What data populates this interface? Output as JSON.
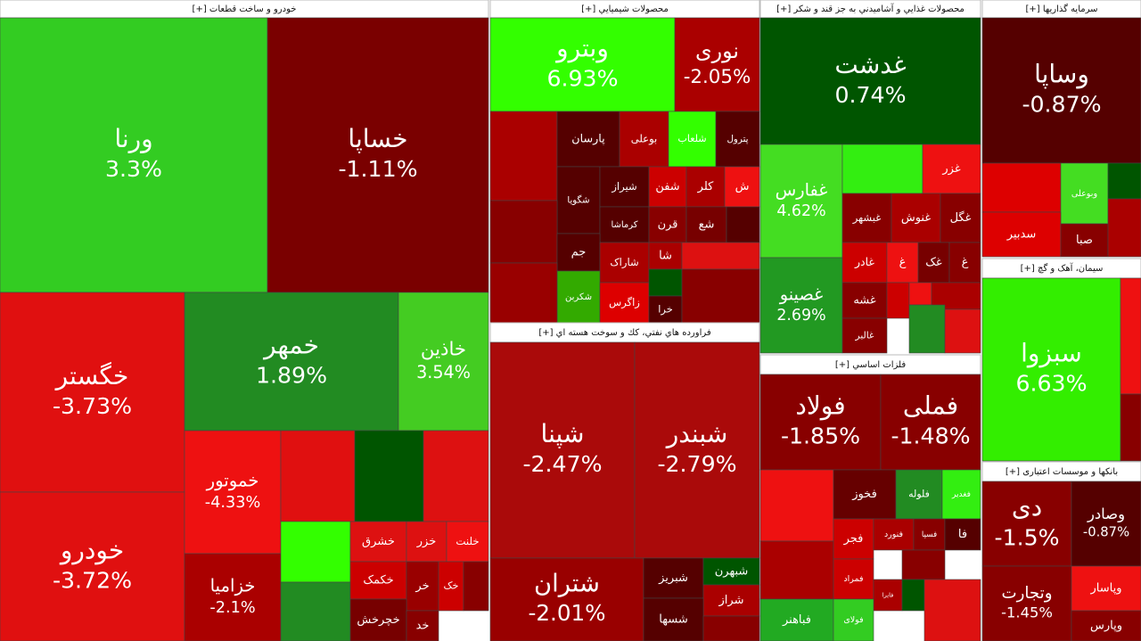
{
  "sectors": [
    {
      "title": "خودرو و ساخت قطعات [+]",
      "tiles": [
        {
          "label": "ورنا",
          "change": "3.3%",
          "color": "#33cc22"
        },
        {
          "label": "خساپا",
          "change": "-1.11%",
          "color": "#7a0000"
        },
        {
          "label": "خگستر",
          "change": "-3.73%",
          "color": "#e01010"
        },
        {
          "label": "خودرو",
          "change": "-3.72%",
          "color": "#e01010"
        },
        {
          "label": "خمهر",
          "change": "1.89%",
          "color": "#228b22"
        },
        {
          "label": "خاذین",
          "change": "3.54%",
          "color": "#44cc22"
        },
        {
          "label": "خموتور",
          "change": "-4.33%",
          "color": "#ee1111"
        },
        {
          "label": "خزامیا",
          "change": "-2.1%",
          "color": "#aa0000"
        },
        {
          "color": "#e01010"
        },
        {
          "color": "#005500"
        },
        {
          "color": "#dd1111"
        },
        {
          "color": "#33ff00"
        },
        {
          "color": "#228b22"
        },
        {
          "label": "خشرق",
          "color": "#dd1111"
        },
        {
          "label": "خزر",
          "color": "#dd1111"
        },
        {
          "label": "خلنت",
          "color": "#ee1111"
        },
        {
          "label": "خکمک",
          "color": "#cc0000"
        },
        {
          "label": "خر",
          "color": "#990000"
        },
        {
          "label": "خک",
          "color": "#cc0000"
        },
        {
          "color": "#880000"
        },
        {
          "label": "خچرخش",
          "color": "#770000"
        },
        {
          "label": "خد",
          "color": "#880000"
        }
      ]
    },
    {
      "title": "محصولات شيميايي [+]",
      "tiles": [
        {
          "label": "وبترو",
          "change": "6.93%",
          "color": "#33ff00"
        },
        {
          "label": "نوری",
          "change": "-2.05%",
          "color": "#aa0000"
        },
        {
          "color": "#aa0000"
        },
        {
          "label": "پارسان",
          "color": "#550000"
        },
        {
          "label": "بوعلی",
          "color": "#aa0000"
        },
        {
          "label": "شلعاب",
          "color": "#33ff00"
        },
        {
          "label": "پترول",
          "color": "#550000"
        },
        {
          "label": "شگویا",
          "color": "#550000"
        },
        {
          "label": "شیراز",
          "color": "#550000"
        },
        {
          "label": "شفن",
          "color": "#cc0000"
        },
        {
          "label": "کلر",
          "color": "#aa0000"
        },
        {
          "label": "ش",
          "color": "#ee1111"
        },
        {
          "color": "#880000"
        },
        {
          "label": "کرماشا",
          "color": "#550000"
        },
        {
          "label": "قرن",
          "color": "#880000"
        },
        {
          "label": "شع",
          "color": "#770000"
        },
        {
          "color": "#550000"
        },
        {
          "label": "جم",
          "color": "#550000"
        },
        {
          "label": "شاراک",
          "color": "#aa0000"
        },
        {
          "label": "شا",
          "color": "#aa0000"
        },
        {
          "color": "#dd1111"
        },
        {
          "label": "شکربن",
          "color": "#33aa00"
        },
        {
          "label": "زاگرس",
          "color": "#dd0000"
        },
        {
          "color": "#005500"
        },
        {
          "label": "خرا",
          "color": "#550000"
        },
        {
          "color": "#880000"
        },
        {
          "color": "#990000"
        }
      ]
    },
    {
      "title": "فراورده هاي نفتي، كك و سوخت هسته اي [+]",
      "tiles": [
        {
          "label": "شپنا",
          "change": "-2.47%",
          "color": "#aa0a0a"
        },
        {
          "label": "شبندر",
          "change": "-2.79%",
          "color": "#aa0a0a"
        },
        {
          "label": "شتران",
          "change": "-2.01%",
          "color": "#990000"
        },
        {
          "label": "شبریز",
          "color": "#550000"
        },
        {
          "label": "شبهرن",
          "color": "#005500"
        },
        {
          "label": "شراز",
          "color": "#aa0000"
        },
        {
          "label": "شسها",
          "color": "#550000"
        },
        {
          "color": "#880000"
        }
      ]
    },
    {
      "title": "محصولات غذايي و آشاميدني به جز قند و شكر [+]",
      "tiles": [
        {
          "label": "غدشت",
          "change": "0.74%",
          "color": "#005500"
        },
        {
          "label": "غفارس",
          "change": "4.62%",
          "color": "#44dd22"
        },
        {
          "label": "غصینو",
          "change": "2.69%",
          "color": "#229922"
        },
        {
          "color": "#33ee11"
        },
        {
          "label": "غزر",
          "color": "#ee1111"
        },
        {
          "label": "غبشهر",
          "color": "#880000"
        },
        {
          "label": "غنوش",
          "color": "#aa0000"
        },
        {
          "label": "غگل",
          "color": "#880000"
        },
        {
          "label": "غادر",
          "color": "#cc0000"
        },
        {
          "label": "غ",
          "color": "#ee1111"
        },
        {
          "label": "غک",
          "color": "#770000"
        },
        {
          "label": "غ",
          "color": "#880000"
        },
        {
          "label": "غشه",
          "color": "#880000"
        },
        {
          "label": "غالبر",
          "color": "#880000"
        },
        {
          "color": "#cc0000"
        },
        {
          "color": "#ee1111"
        },
        {
          "color": "#aa0000"
        },
        {
          "color": "#228b22"
        },
        {
          "color": "#dd1111"
        }
      ]
    },
    {
      "title": "فلزات اساسي [+]",
      "tiles": [
        {
          "label": "فولاد",
          "change": "-1.85%",
          "color": "#880000"
        },
        {
          "label": "فملی",
          "change": "-1.48%",
          "color": "#880000"
        },
        {
          "color": "#ee1111"
        },
        {
          "label": "فخوز",
          "color": "#660000"
        },
        {
          "label": "فلوله",
          "color": "#228b22"
        },
        {
          "label": "فغدیر",
          "color": "#33ee11"
        },
        {
          "color": "#aa0000"
        },
        {
          "label": "فباهنر",
          "color": "#22aa22"
        },
        {
          "label": "فجر",
          "color": "#cc0000"
        },
        {
          "label": "فنورد",
          "color": "#aa0000"
        },
        {
          "label": "فسپا",
          "color": "#880000"
        },
        {
          "label": "فا",
          "color": "#550000"
        },
        {
          "label": "فمراد",
          "color": "#cc0000"
        },
        {
          "label": "فایرا",
          "color": "#aa0000"
        },
        {
          "label": "فولای",
          "color": "#33cc22"
        },
        {
          "color": "#880000"
        },
        {
          "color": "#005500"
        },
        {
          "color": "#dd1111"
        }
      ]
    },
    {
      "title": "سرمایه گذاریها [+]",
      "tiles": [
        {
          "label": "وساپا",
          "change": "-0.87%",
          "color": "#550000"
        },
        {
          "color": "#dd0000"
        },
        {
          "label": "وبوعلی",
          "color": "#44dd22"
        },
        {
          "color": "#005500"
        },
        {
          "label": "سدبیر",
          "color": "#dd0000"
        },
        {
          "label": "صبا",
          "color": "#880000"
        },
        {
          "color": "#aa0000"
        }
      ]
    },
    {
      "title": "سیمان، آهک و گچ [+]",
      "tiles": [
        {
          "label": "سبزوا",
          "change": "6.63%",
          "color": "#33ee00"
        },
        {
          "color": "#ee1111"
        },
        {
          "color": "#880000"
        }
      ]
    },
    {
      "title": "بانکها و موسسات اعتباری [+]",
      "tiles": [
        {
          "label": "دی",
          "change": "-1.5%",
          "color": "#880000"
        },
        {
          "label": "وصادر",
          "change": "-0.87%",
          "color": "#550000"
        },
        {
          "label": "وتجارت",
          "change": "-1.45%",
          "color": "#880000"
        },
        {
          "label": "وپاسار",
          "color": "#ee1111"
        },
        {
          "label": "وپارس",
          "color": "#880000"
        }
      ]
    }
  ]
}
